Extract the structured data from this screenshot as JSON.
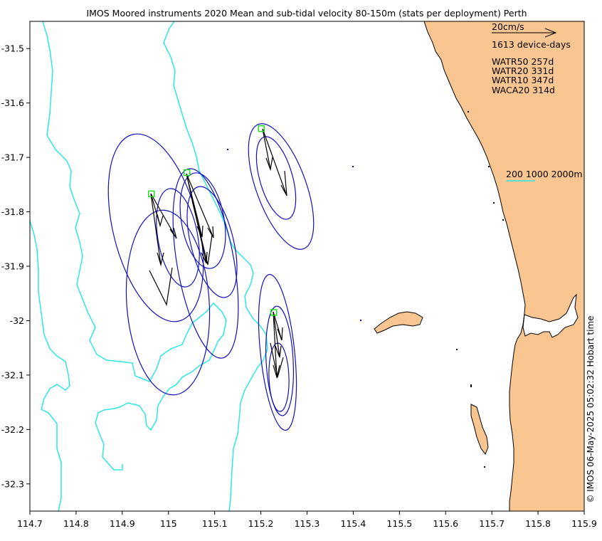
{
  "title": "IMOS Moored instruments 2020 Mean and sub-tidal velocity 80-150m (stats per deployment) Perth",
  "credit": "© IMOS 06-May-2025 05:02:32 Hobart time",
  "scale_label": "20cm/s",
  "device_days": "1613 device-days",
  "moorings": [
    {
      "name": "WATR50 257d",
      "lon": 114.963,
      "lat": -31.767
    },
    {
      "name": "WATR20 331d",
      "lon": 115.04,
      "lat": -31.728
    },
    {
      "name": "WATR10 347d",
      "lon": 115.201,
      "lat": -31.647
    },
    {
      "name": "WACA20 314d",
      "lon": 115.228,
      "lat": -31.985
    }
  ],
  "isobath_label": "200 1000 2000m",
  "colors": {
    "land": "#f9c590",
    "coast": "#000000",
    "isobath": "#2ee6e6",
    "ellipse": "#1111bb",
    "arrow": "#000000",
    "site": "#22dd22"
  },
  "chart_data": {
    "type": "map",
    "xlim": [
      114.7,
      115.9
    ],
    "ylim": [
      -32.35,
      -31.45
    ],
    "xticks": [
      "114.7",
      "114.8",
      "114.9",
      "115",
      "115.1",
      "115.2",
      "115.3",
      "115.4",
      "115.5",
      "115.6",
      "115.7",
      "115.8",
      "115.9"
    ],
    "yticks": [
      "-31.5",
      "-31.6",
      "-31.7",
      "-31.8",
      "-31.9",
      "-32",
      "-32.1",
      "-32.2",
      "-32.3"
    ],
    "xtick_values": [
      114.7,
      114.8,
      114.9,
      115.0,
      115.1,
      115.2,
      115.3,
      115.4,
      115.5,
      115.6,
      115.7,
      115.8,
      115.9
    ],
    "ytick_values": [
      -31.5,
      -31.6,
      -31.7,
      -31.8,
      -31.9,
      -32.0,
      -32.1,
      -32.2,
      -32.3
    ]
  }
}
